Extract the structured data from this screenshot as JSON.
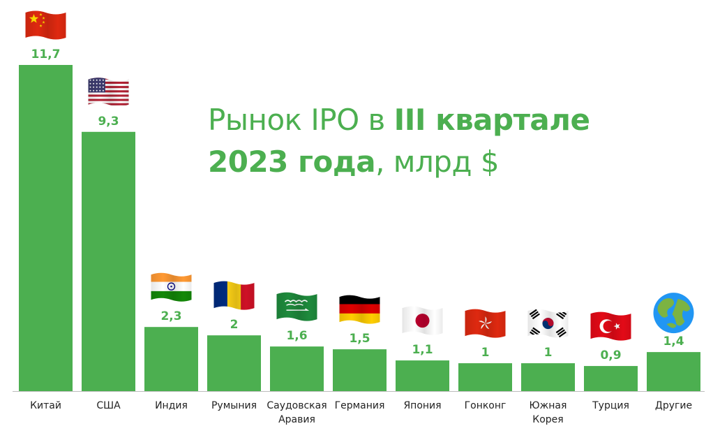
{
  "chart_data": {
    "type": "bar",
    "title": {
      "part1": "Рынок IPO в ",
      "part2": "III кварталe",
      "part3": "2023 года",
      "part4": ", млрд $"
    },
    "categories": [
      "Китай",
      "США",
      "Индия",
      "Румыния",
      "Саудовская Аравия",
      "Германия",
      "Япония",
      "Гонконг",
      "Южная Корея",
      "Турция",
      "Другие"
    ],
    "category_lines": [
      [
        "Китай"
      ],
      [
        "США"
      ],
      [
        "Индия"
      ],
      [
        "Румыния"
      ],
      [
        "Саудовская",
        "Аравия"
      ],
      [
        "Германия"
      ],
      [
        "Япония"
      ],
      [
        "Гонконг"
      ],
      [
        "Южная",
        "Корея"
      ],
      [
        "Турция"
      ],
      [
        "Другие"
      ]
    ],
    "values": [
      11.7,
      9.3,
      2.3,
      2,
      1.6,
      1.5,
      1.1,
      1,
      1,
      0.9,
      1.4
    ],
    "value_labels": [
      "11,7",
      "9,3",
      "2,3",
      "2",
      "1,6",
      "1,5",
      "1,1",
      "1",
      "1",
      "0,9",
      "1,4"
    ],
    "icons": [
      "flag-china-icon",
      "flag-usa-icon",
      "flag-india-icon",
      "flag-romania-icon",
      "flag-saudi-arabia-icon",
      "flag-germany-icon",
      "flag-japan-icon",
      "flag-hong-kong-icon",
      "flag-south-korea-icon",
      "flag-turkey-icon",
      "globe-icon"
    ],
    "ylim": [
      0,
      11.7
    ],
    "bar_color": "#4caf50",
    "label_color": "#4caf50",
    "grid": false,
    "legend": "none"
  }
}
